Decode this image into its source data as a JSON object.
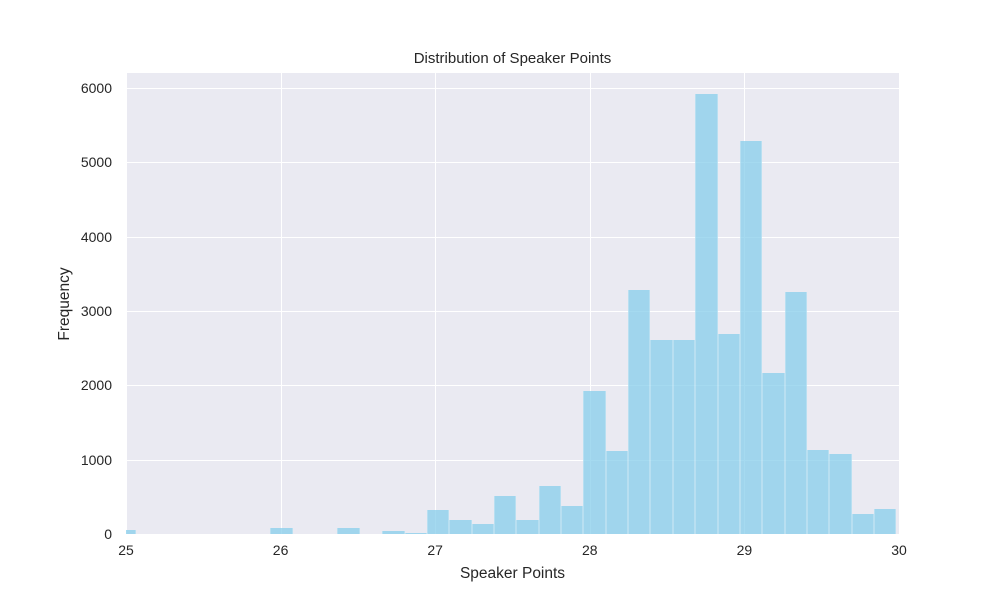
{
  "chart_data": {
    "type": "bar",
    "title": "Distribution of Speaker Points",
    "xlabel": "Speaker Points",
    "ylabel": "Frequency",
    "xlim": [
      25,
      30
    ],
    "ylim": [
      0,
      6200
    ],
    "xticks": [
      25,
      26,
      27,
      28,
      29,
      30
    ],
    "yticks": [
      0,
      1000,
      2000,
      3000,
      4000,
      5000,
      6000
    ],
    "grid": true,
    "bar_color": "#87ceeb",
    "background": "#eaeaf2",
    "bin_start": 24.922,
    "bin_width": 0.1446,
    "values": [
      60,
      0,
      0,
      5,
      3,
      0,
      0,
      87,
      5,
      3,
      87,
      5,
      34,
      10,
      329,
      195,
      128,
      517,
      195,
      651,
      383,
      1926,
      1121,
      3282,
      2611,
      2611,
      5915,
      2691,
      5280,
      2168,
      3255,
      1134,
      1081,
      275,
      342
    ]
  }
}
